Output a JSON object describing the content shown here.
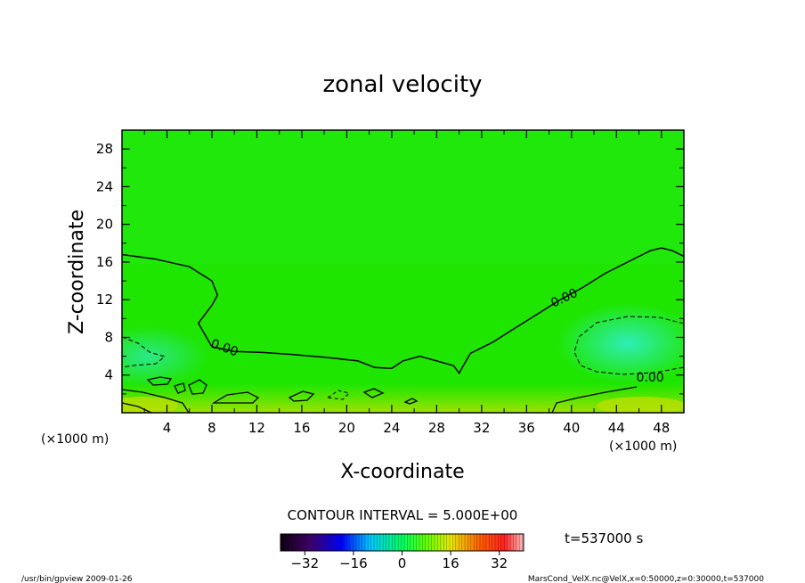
{
  "chart_data": {
    "type": "heatmap",
    "title": "zonal velocity",
    "xlabel": "X-coordinate",
    "ylabel": "Z-coordinate",
    "x_unit_left": "(×1000 m)",
    "x_unit_right": "(×1000 m)",
    "xlim": [
      0,
      50
    ],
    "ylim": [
      0,
      30
    ],
    "xticks": [
      4,
      8,
      12,
      16,
      20,
      24,
      28,
      32,
      36,
      40,
      44,
      48
    ],
    "yticks": [
      4,
      8,
      12,
      16,
      20,
      24,
      28
    ],
    "contour_interval": "CONTOUR INTERVAL = 5.000E+00",
    "contour_labels": [
      {
        "text": "0.00",
        "x": 9.0,
        "y": 6.5
      },
      {
        "text": "0.00",
        "x": 39.5,
        "y": 11.8
      },
      {
        "text": "0.00",
        "x": 47.0,
        "y": 3.3
      }
    ],
    "zero_contour": {
      "x": [
        0,
        3,
        6,
        8,
        8.5,
        8.0,
        6.8,
        8.0,
        10.0,
        12.5,
        15,
        18,
        21,
        22.5,
        24,
        25,
        26.5,
        28,
        29.5,
        30,
        31,
        33,
        35,
        37,
        39,
        41,
        43,
        45,
        47,
        48,
        49,
        50
      ],
      "y": [
        16.8,
        16.3,
        15.5,
        14.0,
        12.5,
        11.4,
        9.5,
        7.0,
        6.5,
        6.4,
        6.2,
        5.9,
        5.5,
        4.8,
        4.7,
        5.5,
        6.0,
        5.5,
        5.0,
        4.2,
        6.3,
        7.5,
        9.0,
        10.5,
        12.0,
        13.3,
        14.8,
        16.0,
        17.2,
        17.5,
        17.2,
        16.6
      ]
    },
    "colorbar": {
      "min": -40,
      "max": 40,
      "tick_values": [
        -32,
        -16,
        0,
        16,
        32
      ],
      "tick_labels": [
        "−32",
        "−16",
        "0",
        "16",
        "32"
      ]
    },
    "time_label": "t=537000 s"
  },
  "footer": {
    "left": "/usr/bin/gpview   2009-01-26",
    "right": "MarsCond_VelX.nc@VelX,x=0:50000,z=0:30000,t=537000"
  },
  "colors": {
    "field_base": "#1ee600",
    "cool_region": "#20e8a0",
    "warm_region": "#a8e400",
    "background": "#ffffff"
  }
}
